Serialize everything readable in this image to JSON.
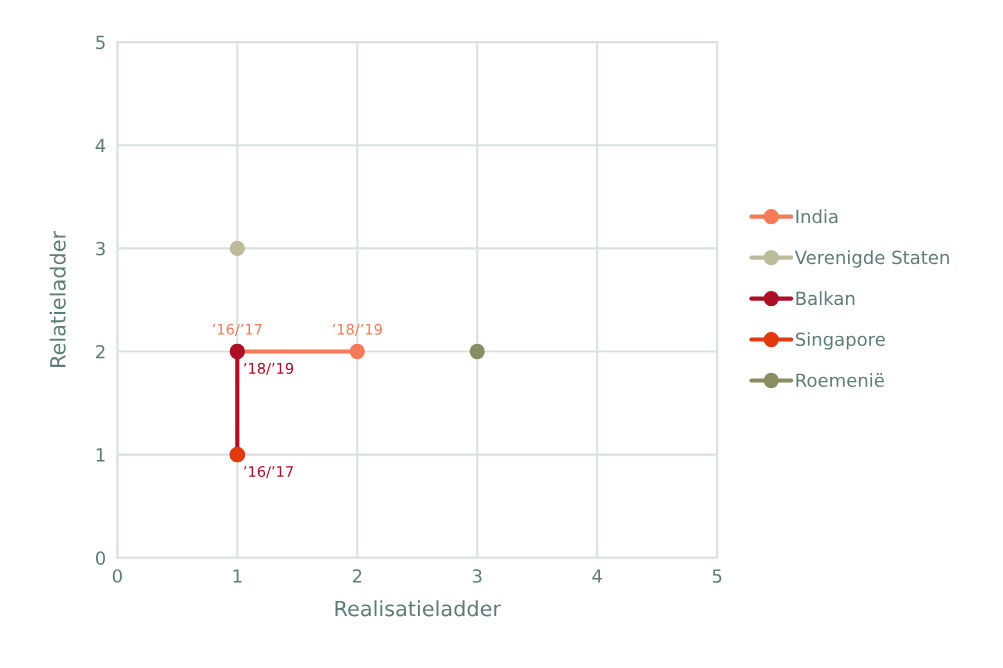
{
  "chart_data": {
    "type": "line",
    "xlabel": "Realisatieladder",
    "ylabel": "Relatieladder",
    "xlim": [
      0,
      5
    ],
    "ylim": [
      0,
      5
    ],
    "xticks": [
      0,
      1,
      2,
      3,
      4,
      5
    ],
    "yticks": [
      0,
      1,
      2,
      3,
      4,
      5
    ],
    "grid": true,
    "legend": "right",
    "marker": "circle",
    "line_style": "solid",
    "series": [
      {
        "name": "India",
        "color": "#f47a58",
        "x": [
          1,
          2
        ],
        "values": [
          2,
          2
        ],
        "value_labels": [
          "’16/’17",
          "’18/’19"
        ]
      },
      {
        "name": "Verenigde Staten",
        "color": "#bcbc9c",
        "x": [
          1
        ],
        "values": [
          3
        ]
      },
      {
        "name": "Balkan",
        "color": "#ad0f26",
        "x": [
          1,
          1
        ],
        "values": [
          1,
          2
        ],
        "value_labels": [
          "’16/’17",
          "’18/’19"
        ]
      },
      {
        "name": "Singapore",
        "color": "#e23a0c",
        "x": [
          1
        ],
        "values": [
          1
        ]
      },
      {
        "name": "Roemenië",
        "color": "#8a8c62",
        "x": [
          3
        ],
        "values": [
          2
        ]
      }
    ]
  }
}
